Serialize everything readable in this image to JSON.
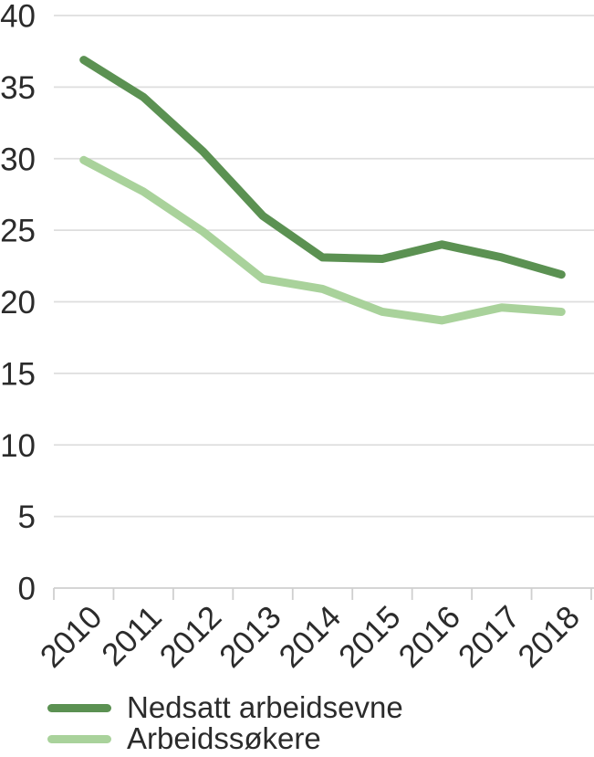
{
  "chart_data": {
    "type": "line",
    "title": "",
    "xlabel": "",
    "ylabel": "",
    "categories": [
      "2010",
      "2011",
      "2012",
      "2013",
      "2014",
      "2015",
      "2016",
      "2017",
      "2018"
    ],
    "series": [
      {
        "name": "Nedsatt arbeidsevne",
        "color": "#5b9152",
        "values": [
          36.9,
          34.3,
          30.5,
          26.0,
          23.1,
          23.0,
          24.0,
          23.1,
          21.9
        ]
      },
      {
        "name": "Arbeidssøkere",
        "color": "#a9d29b",
        "values": [
          29.9,
          27.7,
          24.9,
          21.6,
          20.9,
          19.3,
          18.7,
          19.6,
          19.3
        ]
      }
    ],
    "ylim": [
      0,
      40
    ],
    "yticks": [
      0,
      5,
      10,
      15,
      20,
      25,
      30,
      35,
      40
    ],
    "grid": true,
    "x_tick_rotation": -45,
    "line_width": 9,
    "legend_position": "bottom-left"
  },
  "colors": {
    "series_dark_green": "#5b9152",
    "series_light_green": "#a9d29b",
    "gridline": "#dedede",
    "tick": "#cfcfcf",
    "text": "#2b2b2b",
    "background": "#ffffff"
  }
}
